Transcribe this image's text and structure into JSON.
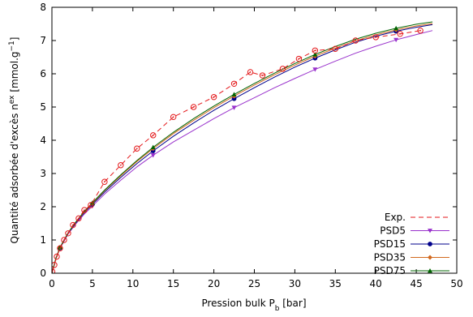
{
  "chart_data": {
    "type": "line",
    "xlabel_main": "Pression bulk P",
    "xlabel_sub": "b",
    "xlabel_unit": " [bar]",
    "ylabel_main": "Quantité adsorbée d'excès n",
    "ylabel_sup": "ex",
    "ylabel_unit": " [mmol.g",
    "ylabel_unit_sup": "−1",
    "ylabel_close": "]",
    "xlim": [
      0,
      50
    ],
    "ylim": [
      0,
      8
    ],
    "xticks": [
      "0",
      "5",
      "10",
      "15",
      "20",
      "25",
      "30",
      "35",
      "40",
      "45",
      "50"
    ],
    "yticks": [
      "0",
      "1",
      "2",
      "3",
      "4",
      "5",
      "6",
      "7",
      "8"
    ],
    "xtick_values": [
      0,
      5,
      10,
      15,
      20,
      25,
      30,
      35,
      40,
      45,
      50
    ],
    "ytick_values": [
      0,
      1,
      2,
      3,
      4,
      5,
      6,
      7,
      8
    ],
    "grid": false,
    "legend_position": "bottom-right",
    "series": [
      {
        "name": "Exp.",
        "color": "#e41a1c",
        "line_style": "dashed",
        "marker": "circle-dot",
        "x": [
          0.05,
          0.3,
          0.6,
          1.0,
          1.5,
          2.0,
          2.6,
          3.3,
          4.0,
          4.8,
          6.5,
          8.5,
          10.5,
          12.5,
          15.0,
          17.5,
          20.0,
          22.5,
          24.5,
          26.0,
          28.5,
          30.5,
          32.5,
          35.0,
          37.5,
          40.0,
          43.0,
          45.5
        ],
        "y": [
          0.05,
          0.25,
          0.5,
          0.75,
          1.0,
          1.2,
          1.45,
          1.65,
          1.9,
          2.05,
          2.75,
          3.25,
          3.75,
          4.15,
          4.7,
          5.0,
          5.3,
          5.7,
          6.05,
          5.95,
          6.15,
          6.45,
          6.7,
          6.75,
          7.0,
          7.1,
          7.2,
          7.3
        ]
      },
      {
        "name": "PSD5",
        "color": "#9932cc",
        "line_style": "solid",
        "marker": "triangle-down",
        "x": [
          0,
          0.5,
          1.0,
          2.0,
          3.0,
          4.0,
          5.0,
          6.5,
          8.5,
          10.5,
          12.5,
          15.0,
          17.5,
          20.0,
          22.5,
          25.0,
          27.5,
          30.0,
          32.5,
          35.0,
          37.5,
          40.0,
          42.5,
          45.0,
          47.0
        ],
        "y": [
          0,
          0.45,
          0.75,
          1.18,
          1.5,
          1.78,
          2.02,
          2.38,
          2.8,
          3.2,
          3.55,
          3.95,
          4.3,
          4.65,
          4.98,
          5.28,
          5.58,
          5.86,
          6.13,
          6.38,
          6.62,
          6.83,
          7.02,
          7.18,
          7.3
        ]
      },
      {
        "name": "PSD15",
        "color": "#00008b",
        "line_style": "solid",
        "marker": "circle",
        "x": [
          0,
          0.5,
          1.0,
          2.0,
          3.0,
          4.0,
          5.0,
          6.5,
          8.5,
          10.5,
          12.5,
          15.0,
          17.5,
          20.0,
          22.5,
          25.0,
          27.5,
          30.0,
          32.5,
          35.0,
          37.5,
          40.0,
          42.5,
          45.0,
          47.0
        ],
        "y": [
          0,
          0.45,
          0.76,
          1.2,
          1.53,
          1.82,
          2.07,
          2.44,
          2.88,
          3.3,
          3.68,
          4.12,
          4.52,
          4.9,
          5.25,
          5.58,
          5.9,
          6.2,
          6.47,
          6.72,
          6.95,
          7.13,
          7.28,
          7.4,
          7.48
        ]
      },
      {
        "name": "PSD35",
        "color": "#d2691e",
        "line_style": "solid",
        "marker": "diamond",
        "x": [
          0,
          0.5,
          1.0,
          2.0,
          3.0,
          4.0,
          5.0,
          6.5,
          8.5,
          10.5,
          12.5,
          15.0,
          17.5,
          20.0,
          22.5,
          25.0,
          27.5,
          30.0,
          32.5,
          35.0,
          37.5,
          40.0,
          42.5,
          45.0,
          47.0
        ],
        "y": [
          0,
          0.45,
          0.77,
          1.21,
          1.55,
          1.84,
          2.1,
          2.48,
          2.93,
          3.36,
          3.75,
          4.2,
          4.6,
          4.98,
          5.33,
          5.66,
          5.97,
          6.26,
          6.53,
          6.77,
          6.99,
          7.17,
          7.32,
          7.44,
          7.51
        ]
      },
      {
        "name": "PSD75",
        "color": "#006400",
        "line_style": "solid",
        "marker": "triangle-up",
        "x": [
          0,
          0.5,
          1.0,
          2.0,
          3.0,
          4.0,
          5.0,
          6.5,
          8.5,
          10.5,
          12.5,
          15.0,
          17.5,
          20.0,
          22.5,
          25.0,
          27.5,
          30.0,
          32.5,
          35.0,
          37.5,
          40.0,
          42.5,
          45.0,
          47.0
        ],
        "y": [
          0,
          0.46,
          0.78,
          1.22,
          1.56,
          1.86,
          2.12,
          2.5,
          2.96,
          3.39,
          3.79,
          4.24,
          4.65,
          5.03,
          5.38,
          5.71,
          6.02,
          6.31,
          6.58,
          6.82,
          7.04,
          7.22,
          7.37,
          7.49,
          7.56
        ]
      }
    ]
  }
}
